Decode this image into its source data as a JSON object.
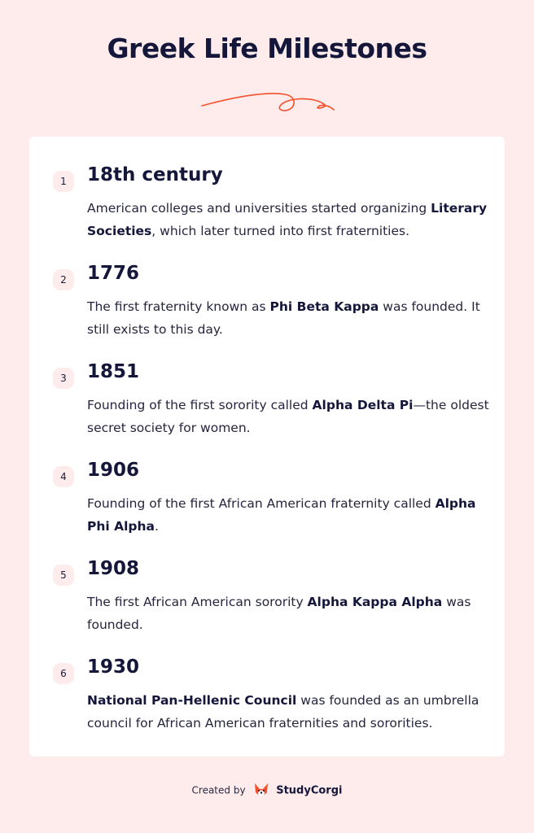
{
  "title": "Greek Life Milestones",
  "accent_color": "#f4502c",
  "items": [
    {
      "number": "1",
      "year": "18th century",
      "before": "American colleges and universities started organizing ",
      "bold": "Literary Societies",
      "after": ", which later turned into first fraternities."
    },
    {
      "number": "2",
      "year": "1776",
      "before": "The first fraternity known as ",
      "bold": "Phi Beta Kappa",
      "after": " was founded. It still exists to this day."
    },
    {
      "number": "3",
      "year": "1851",
      "before": "Founding of the first sorority called ",
      "bold": "Alpha Delta Pi",
      "after": "—the oldest secret society for women."
    },
    {
      "number": "4",
      "year": "1906",
      "before": "Founding of the first African American fraternity called ",
      "bold": "Alpha Phi Alpha",
      "after": "."
    },
    {
      "number": "5",
      "year": "1908",
      "before": "The first African American sorority ",
      "bold": "Alpha Kappa Alpha",
      "after": " was founded."
    },
    {
      "number": "6",
      "year": "1930",
      "before": "",
      "bold": "National Pan-Hellenic Council",
      "after": " was founded as an umbrella council for African American fraternities and sororities."
    }
  ],
  "footer": {
    "created_by": "Created by",
    "brand": "StudyCorgi",
    "logo_icon": "corgi-icon"
  }
}
